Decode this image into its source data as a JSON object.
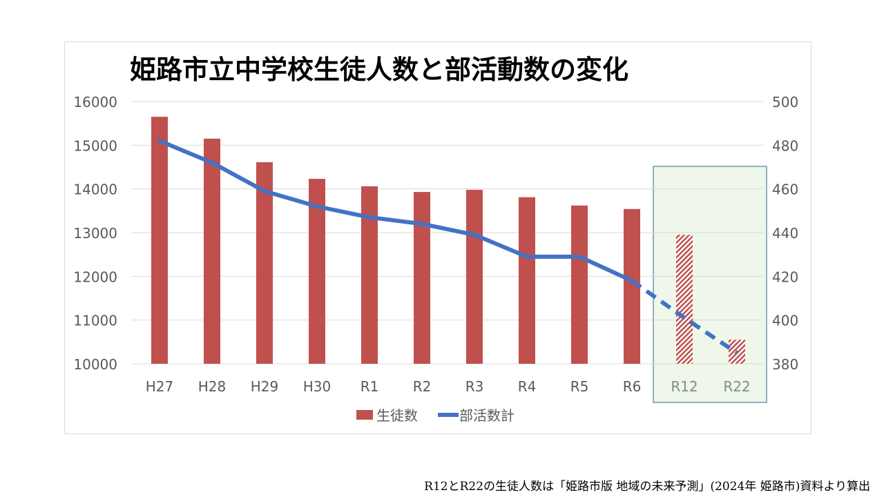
{
  "chart_data": {
    "type": "bar+line",
    "title": "姫路市立中学校生徒人数と部活動数の変化",
    "categories": [
      "H27",
      "H28",
      "H29",
      "H30",
      "R1",
      "R2",
      "R3",
      "R4",
      "R5",
      "R6",
      "R12",
      "R22"
    ],
    "series": [
      {
        "name": "生徒数",
        "type": "bar",
        "axis": "left",
        "values": [
          15650,
          15150,
          14610,
          14230,
          14060,
          13930,
          13980,
          13810,
          13620,
          13540,
          12950,
          10550
        ],
        "projected_from_index": 10,
        "color": "#c0504d"
      },
      {
        "name": "部活数計",
        "type": "line",
        "axis": "right",
        "values": [
          482,
          472,
          459,
          452,
          447,
          444,
          439,
          429,
          429,
          418,
          401,
          385
        ],
        "projected_from_index": 9,
        "color": "#4472c4"
      }
    ],
    "left_axis": {
      "ylim": [
        10000,
        16000
      ],
      "ticks": [
        10000,
        11000,
        12000,
        13000,
        14000,
        15000,
        16000
      ]
    },
    "right_axis": {
      "ylim": [
        380,
        500
      ],
      "ticks": [
        380,
        400,
        420,
        440,
        460,
        480,
        500
      ]
    },
    "grid": true,
    "legend": "bottom",
    "highlight_categories": [
      "R12",
      "R22"
    ]
  },
  "footnote": "R12とR22の生徒人数は「姫路市版 地域の未来予測」(2024年 姫路市)資料より算出"
}
